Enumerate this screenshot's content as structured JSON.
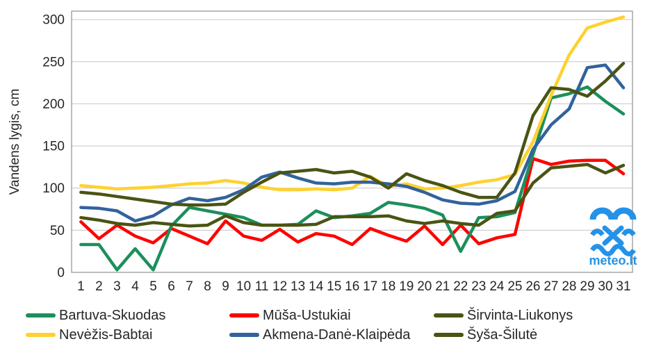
{
  "chart_data": {
    "type": "line",
    "title": "",
    "xlabel": "",
    "ylabel": "Vandens lygis, cm",
    "watermark": "meteo.lt",
    "watermark_color": "#2492e8",
    "grid": true,
    "legend_position": "bottom",
    "ylim": [
      0,
      310
    ],
    "yticks": [
      0,
      50,
      100,
      150,
      200,
      250,
      300
    ],
    "x": [
      1,
      2,
      3,
      4,
      5,
      6,
      7,
      8,
      9,
      10,
      11,
      12,
      13,
      14,
      15,
      16,
      17,
      18,
      19,
      20,
      21,
      22,
      23,
      24,
      25,
      26,
      27,
      28,
      29,
      30,
      31
    ],
    "series": [
      {
        "name": "Bartuva-Skuodas",
        "color": "#1c8f5c",
        "values": [
          33,
          33,
          3,
          28,
          3,
          55,
          77,
          73,
          69,
          65,
          56,
          56,
          57,
          73,
          65,
          67,
          70,
          83,
          80,
          76,
          68,
          25,
          65,
          66,
          71,
          140,
          207,
          212,
          220,
          203,
          188
        ]
      },
      {
        "name": "Mūša-Ustukiai",
        "color": "#ff0000",
        "values": [
          60,
          40,
          56,
          43,
          35,
          52,
          43,
          34,
          61,
          43,
          38,
          51,
          36,
          46,
          43,
          33,
          52,
          44,
          37,
          55,
          33,
          56,
          34,
          41,
          45,
          135,
          128,
          132,
          133,
          133,
          117
        ]
      },
      {
        "name": "Širvinta-Liukonys",
        "color": "#4a5413",
        "values": [
          65,
          62,
          58,
          56,
          59,
          57,
          55,
          56,
          67,
          59,
          56,
          56,
          56,
          57,
          66,
          66,
          66,
          67,
          61,
          58,
          61,
          58,
          56,
          70,
          73,
          106,
          124,
          126,
          128,
          118,
          127
        ]
      },
      {
        "name": "Nevėžis-Babtai",
        "color": "#ffd12f",
        "values": [
          103,
          101,
          99,
          100,
          101,
          103,
          105,
          106,
          109,
          106,
          101,
          98,
          98,
          99,
          98,
          100,
          114,
          102,
          105,
          99,
          100,
          103,
          107,
          110,
          116,
          155,
          210,
          258,
          290,
          297,
          303
        ]
      },
      {
        "name": "Akmena-Danė-Klaipėda",
        "color": "#31639c",
        "values": [
          77,
          76,
          73,
          61,
          67,
          80,
          88,
          85,
          89,
          98,
          113,
          119,
          112,
          106,
          105,
          107,
          107,
          105,
          102,
          95,
          86,
          82,
          81,
          85,
          96,
          146,
          175,
          194,
          243,
          246,
          219
        ]
      },
      {
        "name": "Šyša-Šilutė",
        "color": "#4a5413",
        "values": [
          95,
          93,
          90,
          87,
          84,
          81,
          80,
          80,
          81,
          95,
          107,
          118,
          120,
          122,
          118,
          120,
          113,
          100,
          117,
          109,
          103,
          95,
          89,
          89,
          118,
          186,
          219,
          217,
          209,
          227,
          248
        ]
      }
    ],
    "axis_color": "#a6a6a6",
    "gridline_color": "#c6c6c6",
    "tick_label_color": "#262626"
  }
}
